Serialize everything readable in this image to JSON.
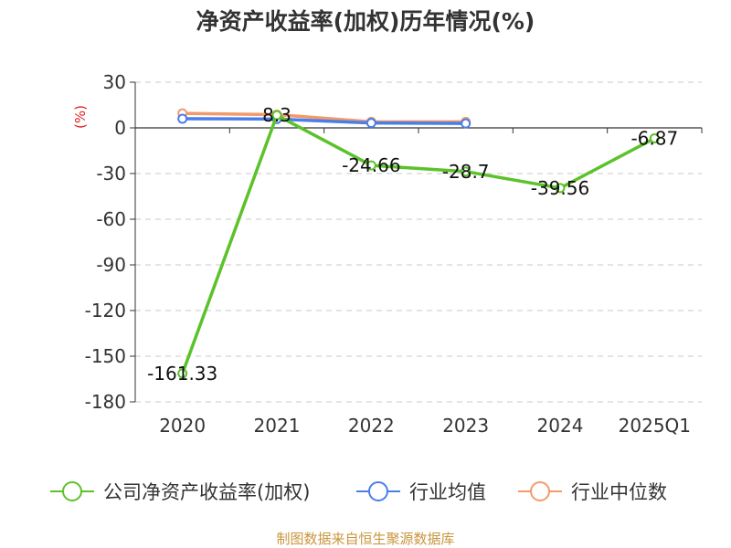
{
  "chart_data": {
    "type": "line",
    "title": "净资产收益率(加权)历年情况(%)",
    "ylabel": "(%)",
    "categories": [
      "2020",
      "2021",
      "2022",
      "2023",
      "2024",
      "2025Q1"
    ],
    "ylim": [
      -180,
      30
    ],
    "yticks": [
      30,
      0,
      -30,
      -60,
      -90,
      -120,
      -150,
      -180
    ],
    "grid": true,
    "legend_position": "bottom",
    "series": [
      {
        "name": "公司净资产收益率(加权)",
        "color": "#5cc22a",
        "values": [
          -161.33,
          8.3,
          -24.66,
          -28.7,
          -39.56,
          -6.87
        ],
        "labels": [
          "-161.33",
          "8.3",
          "-24.66",
          "-28.7",
          "-39.56",
          "-6.87"
        ]
      },
      {
        "name": "行业均值",
        "color": "#4a7ee8",
        "values": [
          6,
          5.8,
          3.2,
          2.9,
          null,
          null
        ]
      },
      {
        "name": "行业中位数",
        "color": "#f29a6c",
        "values": [
          9.5,
          8.7,
          4,
          4,
          null,
          null
        ]
      }
    ]
  },
  "source": "制图数据来自恒生聚源数据库"
}
